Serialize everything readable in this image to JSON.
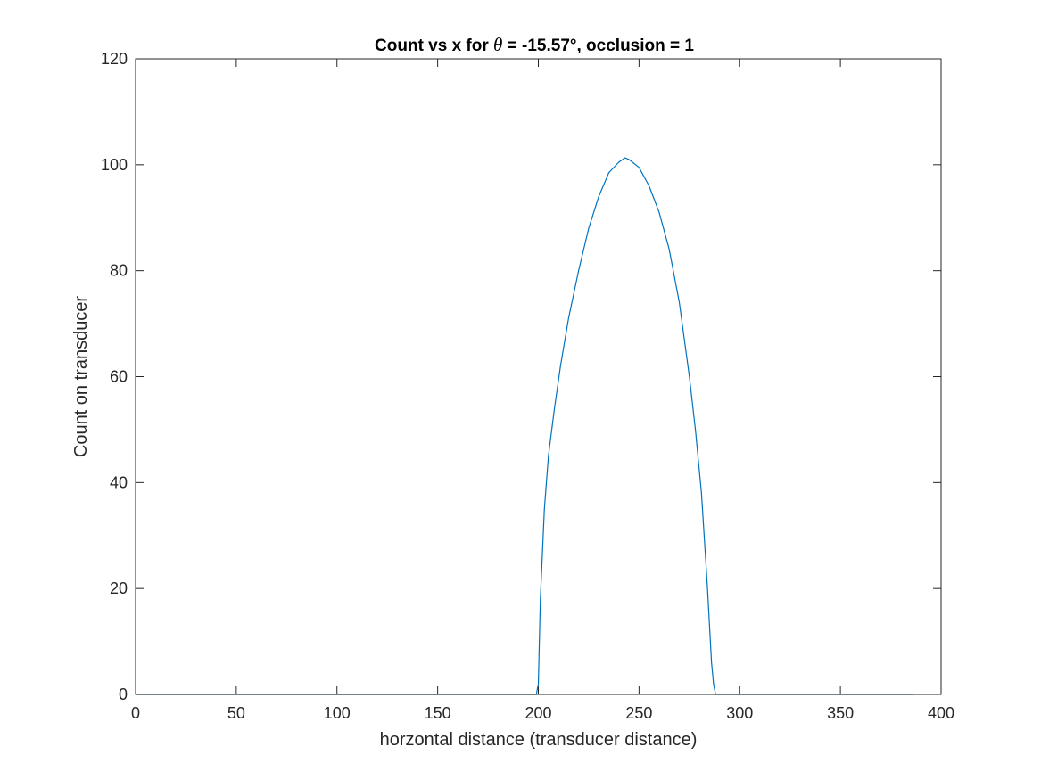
{
  "chart_data": {
    "type": "line",
    "title": {
      "prefix": "Count vs x for ",
      "symbol": "θ",
      "suffix": " = -15.57°, occlusion =  1"
    },
    "xlabel": "horzontal distance (transducer distance)",
    "ylabel": "Count on transducer",
    "xlim": [
      0,
      400
    ],
    "ylim": [
      0,
      120
    ],
    "xticks": [
      0,
      50,
      100,
      150,
      200,
      250,
      300,
      350,
      400
    ],
    "yticks": [
      0,
      20,
      40,
      60,
      80,
      100,
      120
    ],
    "xtick_labels": [
      "0",
      "50",
      "100",
      "150",
      "200",
      "250",
      "300",
      "350",
      "400"
    ],
    "ytick_labels": [
      "0",
      "20",
      "40",
      "60",
      "80",
      "100",
      "120"
    ],
    "grid": false,
    "box": true,
    "series": [
      {
        "color": "#0072BD",
        "x": [
          0,
          100,
          199,
          200,
          201,
          203,
          205,
          208,
          211,
          215,
          220,
          225,
          230,
          235,
          240,
          243,
          245,
          250,
          255,
          260,
          265,
          270,
          275,
          278,
          281,
          284,
          286,
          287,
          288,
          300,
          350,
          386
        ],
        "y": [
          0,
          0,
          0,
          2,
          18,
          35,
          45,
          54,
          62,
          71,
          80,
          88,
          94,
          98.5,
          100.5,
          101.3,
          101,
          99.5,
          96,
          91,
          84,
          74,
          60,
          50,
          38,
          20,
          6,
          2,
          0,
          0,
          0,
          0
        ]
      }
    ]
  }
}
